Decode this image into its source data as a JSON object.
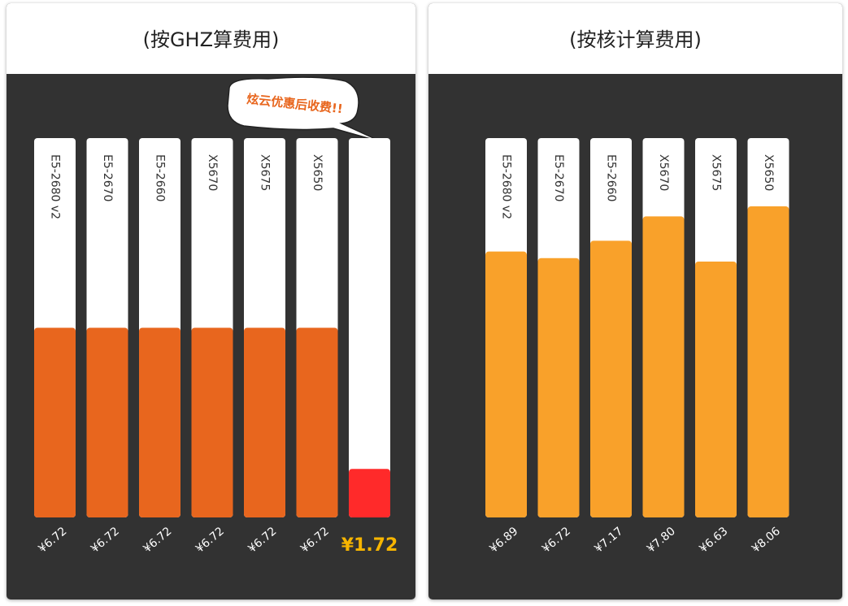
{
  "chart_data": [
    {
      "type": "bar",
      "title": "(按GHZ算费用)",
      "categories": [
        "E5-2680 v2",
        "E5-2670",
        "E5-2660",
        "X5670",
        "X5675",
        "X5650",
        null
      ],
      "values": [
        6.72,
        6.72,
        6.72,
        6.72,
        6.72,
        6.72,
        1.72
      ],
      "value_labels": [
        "¥6.72",
        "¥6.72",
        "¥6.72",
        "¥6.72",
        "¥6.72",
        "¥6.72",
        "¥1.72"
      ],
      "colors": [
        "#e8661e",
        "#e8661e",
        "#e8661e",
        "#e8661e",
        "#e8661e",
        "#e8661e",
        "#ff2a2a"
      ],
      "annotation": "炫云优惠后收费!!"
    },
    {
      "type": "bar",
      "title": "(按核计算费用)",
      "categories": [
        "E5-2680 v2",
        "E5-2670",
        "E5-2660",
        "X5670",
        "X5675",
        "X5650"
      ],
      "values": [
        6.89,
        6.72,
        7.17,
        7.8,
        6.63,
        8.06
      ],
      "value_labels": [
        "¥6.89",
        "¥6.72",
        "¥7.17",
        "¥7.80",
        "¥6.63",
        "¥8.06"
      ],
      "colors": [
        "#f9a12a",
        "#f9a12a",
        "#f9a12a",
        "#f9a12a",
        "#f9a12a",
        "#f9a12a"
      ]
    }
  ]
}
